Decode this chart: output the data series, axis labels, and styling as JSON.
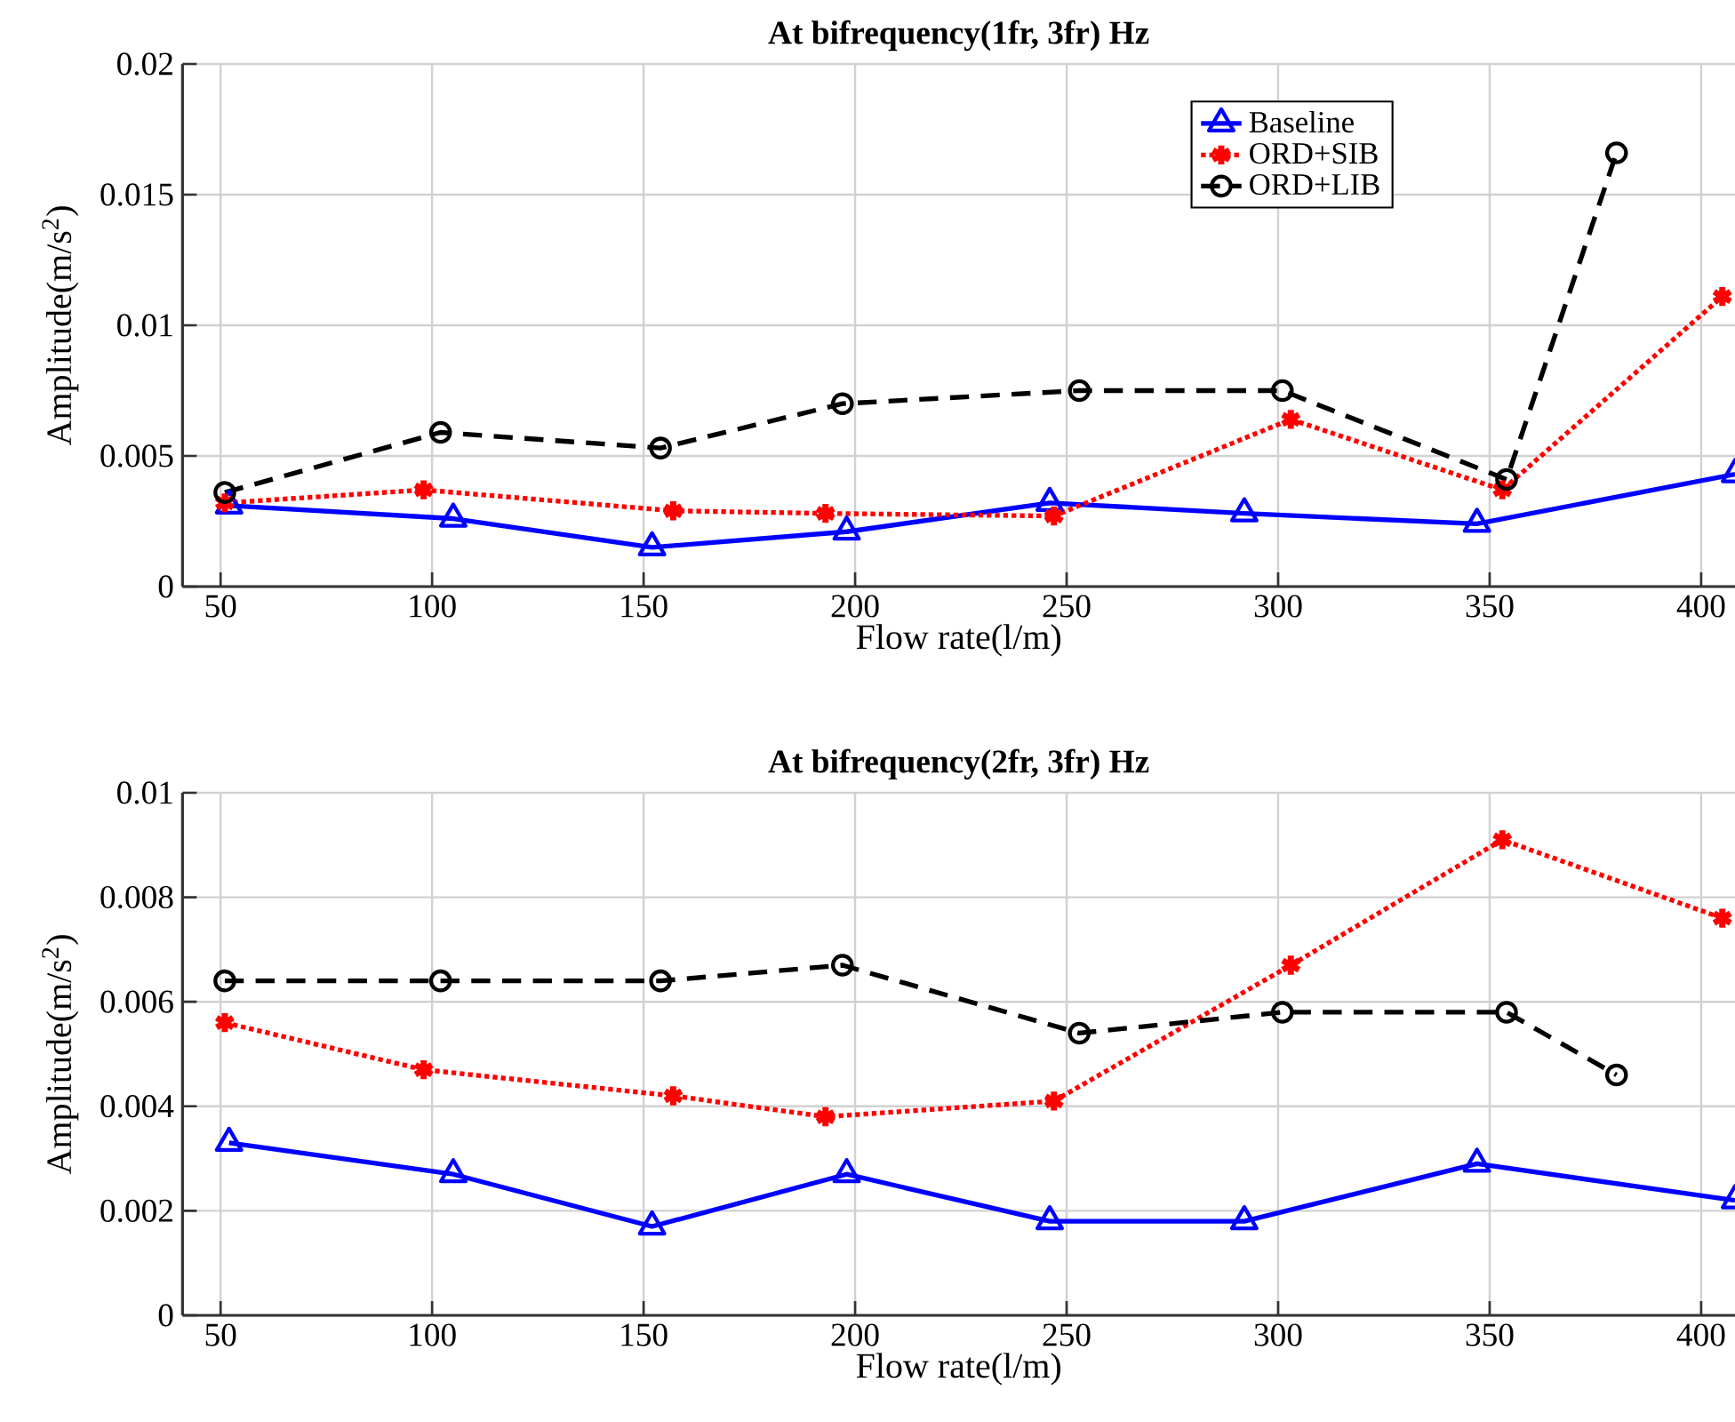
{
  "chart_data": [
    {
      "type": "line",
      "title": "At bifrequency(1fr, 3fr) Hz",
      "xlabel": "Flow rate(l/m)",
      "ylabel": "Amplitude(m/s$^{2}$)",
      "xlim": [
        41,
        408
      ],
      "ylim": [
        0,
        0.02
      ],
      "xticks": [
        50,
        100,
        150,
        200,
        250,
        300,
        350,
        400
      ],
      "yticks": [
        0,
        0.005,
        0.01,
        0.015,
        0.02
      ],
      "grid": true,
      "legend": "top right",
      "series": [
        {
          "name": "Baseline",
          "color": "#0000ff",
          "marker": "triangle",
          "line_style": "solid",
          "x": [
            52,
            105,
            152,
            198,
            246,
            292,
            347,
            408
          ],
          "values": [
            0.0031,
            0.0026,
            0.0015,
            0.0021,
            0.0032,
            0.0028,
            0.0024,
            0.0043
          ]
        },
        {
          "name": "ORD+SIB",
          "color": "#ff0000",
          "marker": "cross",
          "line_style": "dotted",
          "x": [
            51,
            98,
            157,
            193,
            247,
            303,
            353,
            405
          ],
          "values": [
            0.0032,
            0.0037,
            0.0029,
            0.0028,
            0.0027,
            0.0064,
            0.0037,
            0.0111
          ]
        },
        {
          "name": "ORD+LIB",
          "color": "#000000",
          "marker": "circle",
          "line_style": "dashed",
          "x": [
            51,
            102,
            154,
            197,
            253,
            301,
            354,
            380
          ],
          "values": [
            0.0036,
            0.0059,
            0.0053,
            0.007,
            0.0075,
            0.0075,
            0.0041,
            0.0166
          ]
        }
      ]
    },
    {
      "type": "line",
      "title": "At bifrequency(2fr, 3fr) Hz",
      "xlabel": "Flow rate(l/m)",
      "ylabel": "Amplitude(m/s$^{2}$)",
      "xlim": [
        41,
        408
      ],
      "ylim": [
        0,
        0.01
      ],
      "xticks": [
        50,
        100,
        150,
        200,
        250,
        300,
        350,
        400
      ],
      "yticks": [
        0,
        0.002,
        0.004,
        0.006,
        0.008,
        0.01
      ],
      "grid": true,
      "series": [
        {
          "color": "#0000ff",
          "marker": "triangle",
          "line_style": "solid",
          "x": [
            52,
            105,
            152,
            198,
            246,
            292,
            347,
            408
          ],
          "values": [
            0.0033,
            0.0027,
            0.0017,
            0.0027,
            0.0018,
            0.0018,
            0.0029,
            0.0022
          ]
        },
        {
          "color": "#ff0000",
          "marker": "cross",
          "line_style": "dotted",
          "x": [
            51,
            98,
            157,
            193,
            247,
            303,
            353,
            405
          ],
          "values": [
            0.0056,
            0.0047,
            0.0042,
            0.0038,
            0.0041,
            0.0067,
            0.0091,
            0.0076
          ]
        },
        {
          "color": "#000000",
          "marker": "circle",
          "line_style": "dashed",
          "x": [
            51,
            102,
            154,
            197,
            253,
            301,
            354,
            380
          ],
          "values": [
            0.0064,
            0.0064,
            0.0064,
            0.0067,
            0.0054,
            0.0058,
            0.0058,
            0.0046
          ]
        }
      ]
    }
  ]
}
